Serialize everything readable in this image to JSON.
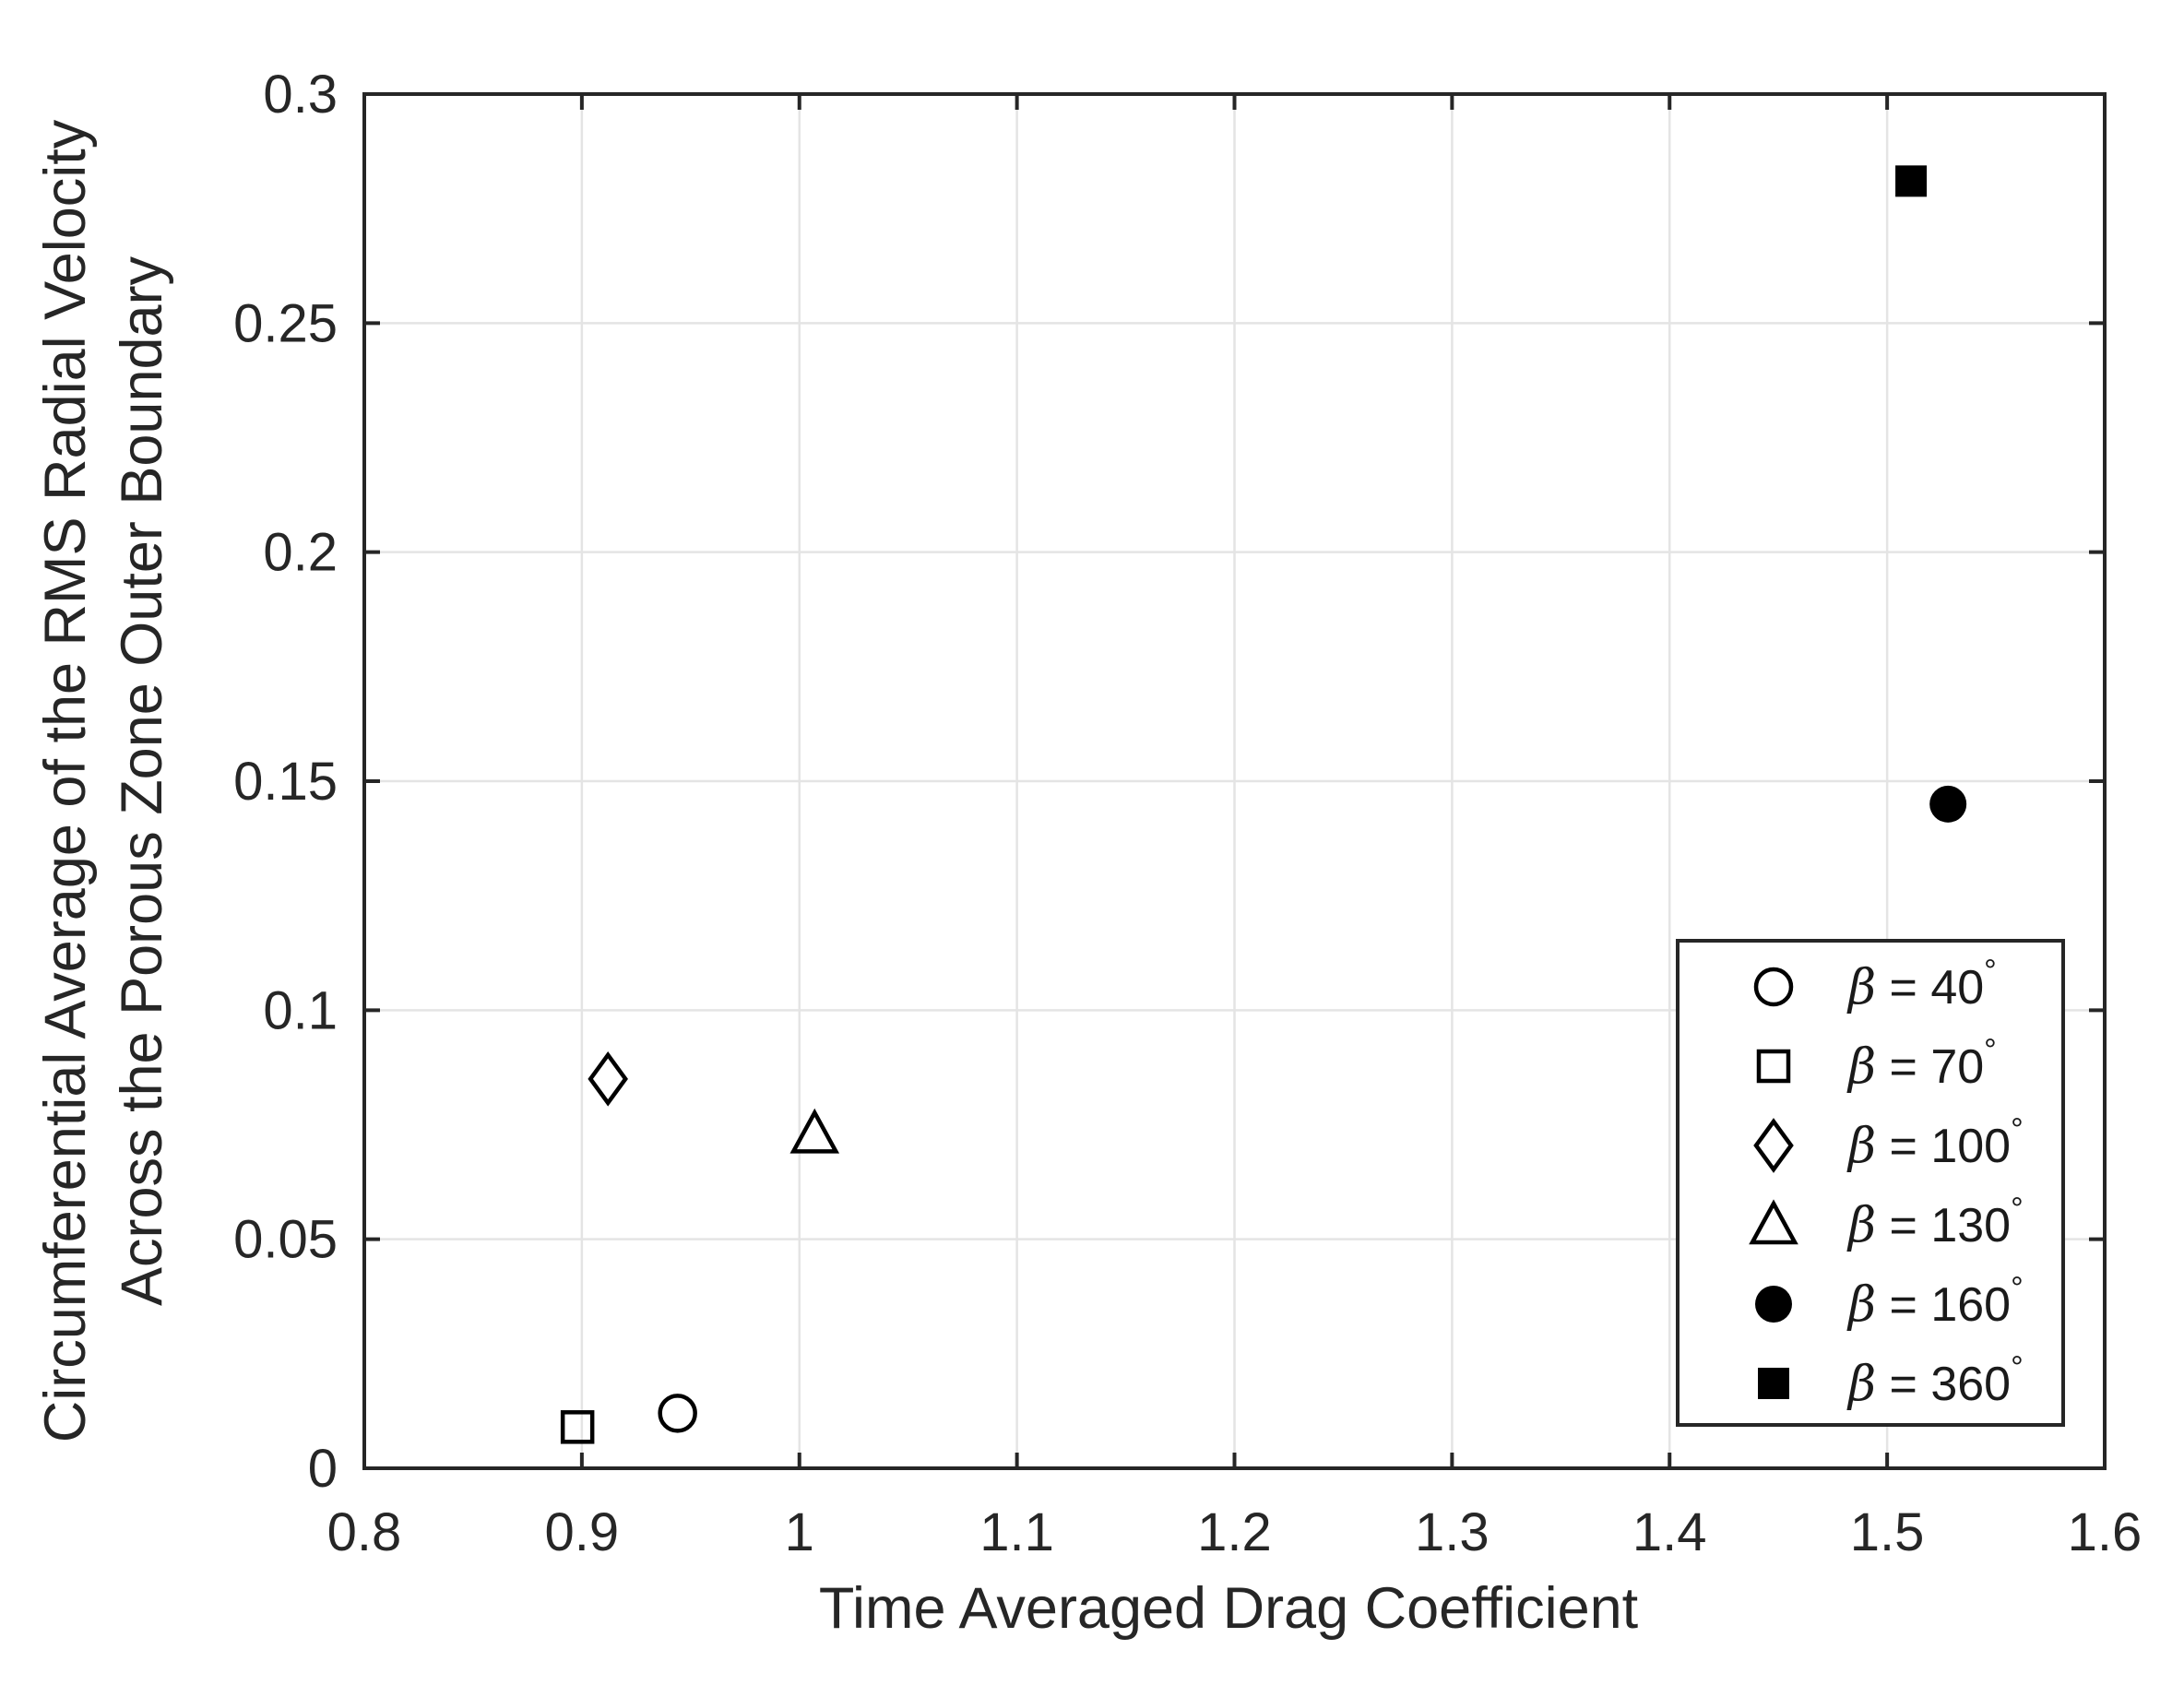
{
  "figure": {
    "background": "#ffffff",
    "axis_color": "#262626",
    "grid_color": "#e4e4e4",
    "marker_color": "#000000",
    "text_color": "#262626"
  },
  "chart_data": {
    "type": "scatter",
    "title": "",
    "xlabel": "Time Averaged Drag Coefficient",
    "ylabel_line1": "Circumferential Average of the RMS Radial Velocity",
    "ylabel_line2": "Across the Porous Zone Outer Boundary",
    "xlim": [
      0.8,
      1.6
    ],
    "ylim": [
      0,
      0.3
    ],
    "grid": true,
    "legend_location": "inside lower-right",
    "xticks": [
      {
        "v": 0.8,
        "label": "0.8"
      },
      {
        "v": 0.9,
        "label": "0.9"
      },
      {
        "v": 1.0,
        "label": "1"
      },
      {
        "v": 1.1,
        "label": "1.1"
      },
      {
        "v": 1.2,
        "label": "1.2"
      },
      {
        "v": 1.3,
        "label": "1.3"
      },
      {
        "v": 1.4,
        "label": "1.4"
      },
      {
        "v": 1.5,
        "label": "1.5"
      },
      {
        "v": 1.6,
        "label": "1.6"
      }
    ],
    "yticks": [
      {
        "v": 0.0,
        "label": "0"
      },
      {
        "v": 0.05,
        "label": "0.05"
      },
      {
        "v": 0.1,
        "label": "0.1"
      },
      {
        "v": 0.15,
        "label": "0.15"
      },
      {
        "v": 0.2,
        "label": "0.2"
      },
      {
        "v": 0.25,
        "label": "0.25"
      },
      {
        "v": 0.3,
        "label": "0.3"
      }
    ],
    "series": [
      {
        "beta": 40,
        "label": "β = 40°",
        "label_value": "40",
        "marker": "circle",
        "fill": "open",
        "points": [
          [
            0.944,
            0.012
          ]
        ]
      },
      {
        "beta": 70,
        "label": "β = 70°",
        "label_value": "70",
        "marker": "square",
        "fill": "open",
        "points": [
          [
            0.898,
            0.009
          ]
        ]
      },
      {
        "beta": 100,
        "label": "β = 100°",
        "label_value": "100",
        "marker": "diamond",
        "fill": "open",
        "points": [
          [
            0.912,
            0.085
          ]
        ]
      },
      {
        "beta": 130,
        "label": "β = 130°",
        "label_value": "130",
        "marker": "triangle",
        "fill": "open",
        "points": [
          [
            1.007,
            0.073
          ]
        ]
      },
      {
        "beta": 160,
        "label": "β = 160°",
        "label_value": "160",
        "marker": "circle",
        "fill": "solid",
        "points": [
          [
            1.528,
            0.145
          ]
        ]
      },
      {
        "beta": 360,
        "label": "β = 360°",
        "label_value": "360",
        "marker": "square",
        "fill": "solid",
        "points": [
          [
            1.511,
            0.281
          ]
        ]
      }
    ],
    "legend_symbol": {
      "variable": "β",
      "equals": "=",
      "degree": "°"
    }
  }
}
